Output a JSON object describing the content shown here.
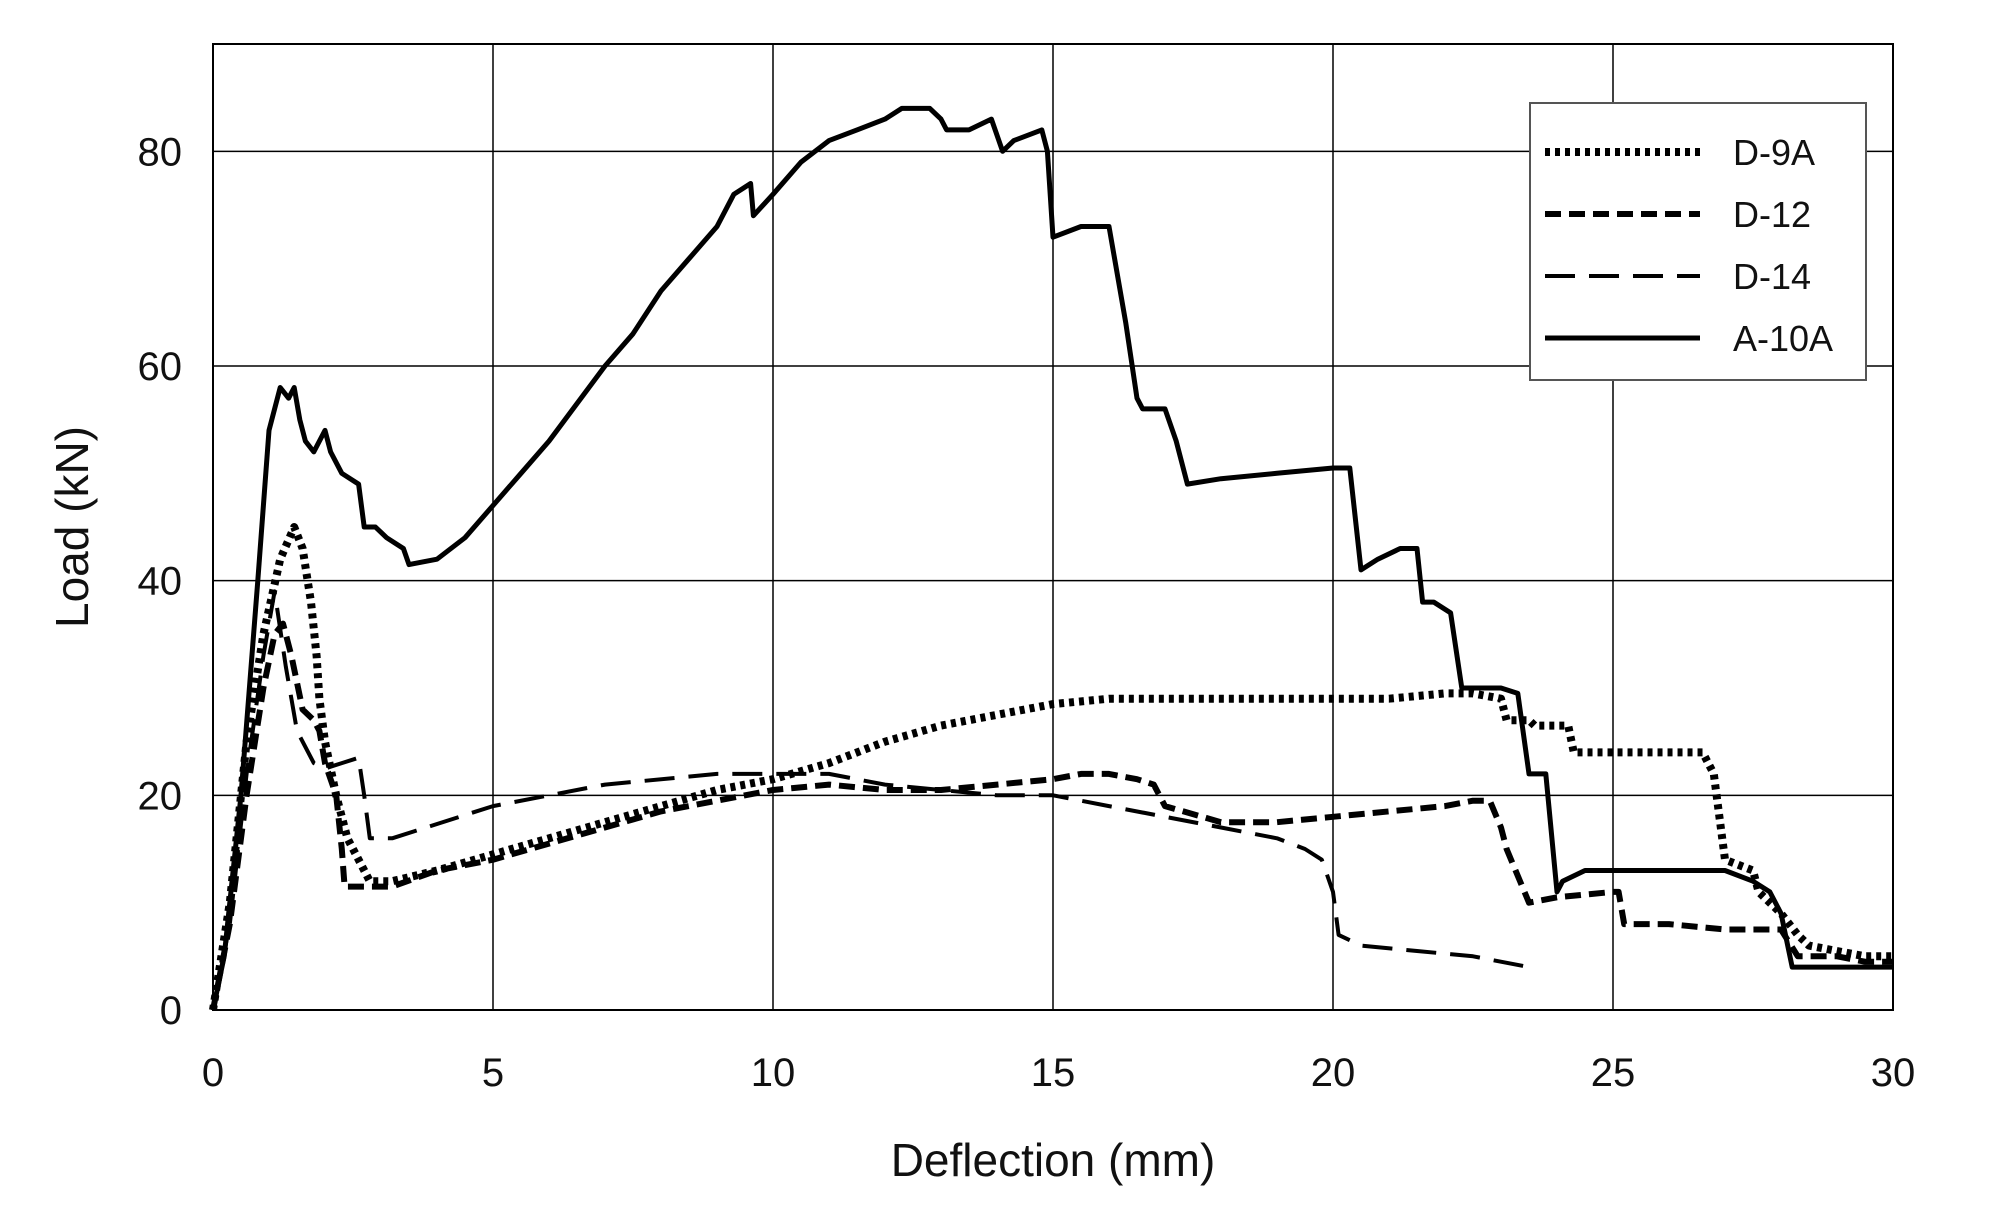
{
  "chart_data": {
    "type": "line",
    "title": "",
    "xlabel": "Deflection (mm)",
    "ylabel": "Load (kN)",
    "xlim": [
      0,
      30
    ],
    "ylim": [
      0,
      90
    ],
    "xticks": [
      0,
      5,
      10,
      15,
      20,
      25,
      30
    ],
    "yticks": [
      0,
      20,
      40,
      60,
      80
    ],
    "xtick_labels": [
      "0",
      "5",
      "10",
      "15",
      "20",
      "25",
      "30"
    ],
    "ytick_labels": [
      "0",
      "20",
      "40",
      "60",
      "80"
    ],
    "grid": true,
    "legend_position": "top-right",
    "colors": {
      "line": "#000000",
      "grid": "#000000",
      "background": "#ffffff"
    },
    "series": [
      {
        "name": "D-9A",
        "style": "dotted",
        "x": [
          0,
          0.3,
          0.6,
          0.9,
          1.2,
          1.45,
          1.6,
          1.75,
          1.85,
          1.9,
          2.0,
          2.2,
          2.4,
          2.6,
          2.8,
          3.2,
          4,
          5,
          6,
          7,
          8,
          9,
          10,
          11,
          12,
          13,
          14,
          15,
          16,
          17,
          18,
          19,
          20,
          21,
          22,
          22.5,
          23.0,
          23.1,
          23.5,
          23.6,
          24.2,
          24.3,
          25,
          26.6,
          26.8,
          27.0,
          27.5,
          27.6,
          28.0,
          28.3,
          28.5,
          29,
          29.5,
          30
        ],
        "y": [
          0,
          10,
          25,
          35,
          42,
          45,
          43,
          38,
          33,
          29,
          25,
          20,
          16,
          14,
          12,
          12,
          13,
          14.5,
          16,
          17.5,
          19,
          20.5,
          21.5,
          23,
          25,
          26.5,
          27.5,
          28.5,
          29,
          29,
          29,
          29,
          29,
          29,
          29.5,
          29.5,
          29,
          27,
          27,
          26.5,
          26.5,
          24,
          24,
          24,
          22,
          14,
          13,
          11,
          9,
          7,
          6,
          5.5,
          5,
          5
        ]
      },
      {
        "name": "D-12",
        "style": "dashed",
        "x": [
          0,
          0.3,
          0.6,
          0.9,
          1.1,
          1.25,
          1.4,
          1.6,
          1.8,
          1.9,
          2.0,
          2.2,
          2.3,
          2.35,
          3.2,
          4,
          5,
          6,
          7,
          8,
          9,
          10,
          11,
          12,
          13,
          14,
          15,
          15.5,
          16,
          16.5,
          16.8,
          17,
          18,
          19,
          20,
          21,
          22,
          22.5,
          22.8,
          23,
          23.1,
          23.5,
          24,
          25,
          25.1,
          25.2,
          26,
          27,
          27.5,
          27.8,
          28.0,
          28.3,
          28.5,
          29,
          29.5,
          30
        ],
        "y": [
          0,
          8,
          20,
          30,
          35,
          36,
          33,
          28,
          27,
          26,
          23,
          20,
          15,
          11.5,
          11.5,
          13,
          14,
          15.5,
          17,
          18.5,
          19.5,
          20.5,
          21,
          20.5,
          20.5,
          21,
          21.5,
          22,
          22,
          21.5,
          21,
          19,
          17.5,
          17.5,
          18,
          18.5,
          19,
          19.5,
          19.5,
          17,
          15,
          10,
          10.5,
          11,
          11,
          8,
          8,
          7.5,
          7.5,
          7.5,
          7.5,
          5,
          5,
          5,
          4.5,
          4.5
        ]
      },
      {
        "name": "D-14",
        "style": "long-dash",
        "x": [
          0,
          0.3,
          0.6,
          0.9,
          1.1,
          1.3,
          1.5,
          1.8,
          2.0,
          2.3,
          2.6,
          2.7,
          2.8,
          3.2,
          5,
          7,
          9,
          11,
          12,
          13,
          14,
          15,
          16,
          17,
          18,
          19,
          19.5,
          19.8,
          20,
          20.1,
          20.5,
          21.5,
          22.5,
          23.5
        ],
        "y": [
          0,
          8,
          22,
          33,
          39,
          32,
          26,
          23,
          22.5,
          23,
          23.5,
          20,
          16,
          16,
          19,
          21,
          22,
          22,
          21,
          20.5,
          20,
          20,
          19,
          18,
          17,
          16,
          15,
          14,
          11,
          7,
          6,
          5.5,
          5,
          4
        ]
      },
      {
        "name": "A-10A",
        "style": "solid",
        "x": [
          0,
          0.2,
          0.5,
          0.8,
          1.0,
          1.2,
          1.35,
          1.45,
          1.55,
          1.65,
          1.8,
          2.0,
          2.1,
          2.3,
          2.6,
          2.7,
          2.9,
          3.1,
          3.4,
          3.5,
          4,
          4.5,
          5,
          5.5,
          6,
          7,
          7.5,
          8,
          8.5,
          9,
          9.3,
          9.6,
          9.65,
          10,
          10.5,
          11,
          11.5,
          12,
          12.3,
          12.8,
          13.0,
          13.1,
          13.5,
          13.9,
          14.1,
          14.3,
          14.8,
          14.9,
          15.0,
          15.5,
          16.0,
          16.1,
          16.3,
          16.5,
          16.6,
          17.0,
          17.2,
          17.4,
          18,
          19,
          20,
          20.3,
          20.5,
          20.8,
          21.2,
          21.5,
          21.6,
          21.8,
          22.1,
          22.3,
          22.5,
          23,
          23.3,
          23.5,
          23.8,
          24.0,
          24.1,
          24.5,
          25,
          26,
          27,
          27.5,
          27.8,
          28.0,
          28.2,
          28.5,
          29,
          29.5,
          30
        ],
        "y": [
          0,
          5,
          20,
          40,
          54,
          58,
          57,
          58,
          55,
          53,
          52,
          54,
          52,
          50,
          49,
          45,
          45,
          44,
          43,
          41.5,
          42,
          44,
          47,
          50,
          53,
          60,
          63,
          67,
          70,
          73,
          76,
          77,
          74,
          76,
          79,
          81,
          82,
          83,
          84,
          84,
          83,
          82,
          82,
          83,
          80,
          81,
          82,
          80,
          72,
          73,
          73,
          70,
          64,
          57,
          56,
          56,
          53,
          49,
          49.5,
          50,
          50.5,
          50.5,
          41,
          42,
          43,
          43,
          38,
          38,
          37,
          30,
          30,
          30,
          29.5,
          22,
          22,
          11,
          12,
          13,
          13,
          13,
          13,
          12,
          11,
          9,
          4,
          4,
          4,
          4,
          4
        ]
      }
    ]
  }
}
